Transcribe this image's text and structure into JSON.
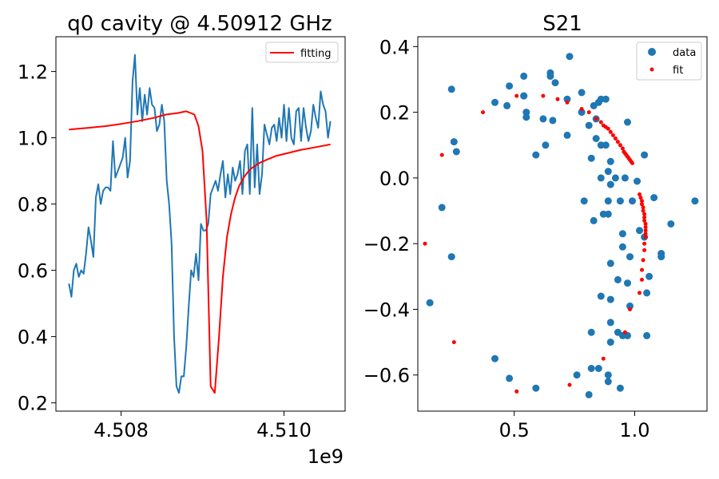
{
  "chart_data": [
    {
      "type": "line",
      "title": "q0 cavity @ 4.50912 GHz",
      "xlabel": "",
      "ylabel": "",
      "x_offset_label": "1e9",
      "xlim": [
        4507.2,
        4510.75
      ],
      "ylim": [
        0.175,
        1.305
      ],
      "x_unit_note": "x values in MHz",
      "xticks": [
        {
          "value": 4508.0,
          "label": "4.508"
        },
        {
          "value": 4510.0,
          "label": "4.510"
        }
      ],
      "yticks": [
        {
          "value": 0.2,
          "label": "0.2"
        },
        {
          "value": 0.4,
          "label": "0.4"
        },
        {
          "value": 0.6,
          "label": "0.6"
        },
        {
          "value": 0.8,
          "label": "0.8"
        },
        {
          "value": 1.0,
          "label": "1.0"
        },
        {
          "value": 1.2,
          "label": "1.2"
        }
      ],
      "legend": {
        "position": "top-right",
        "entries": [
          {
            "name": "fitting",
            "color": "#ff0000",
            "kind": "line"
          }
        ]
      },
      "series": [
        {
          "name": "",
          "color": "#1f77b4",
          "x": [
            4507.36,
            4507.39,
            4507.42,
            4507.45,
            4507.48,
            4507.51,
            4507.54,
            4507.57,
            4507.6,
            4507.63,
            4507.66,
            4507.69,
            4507.72,
            4507.75,
            4507.78,
            4507.81,
            4507.84,
            4507.87,
            4507.9,
            4507.93,
            4507.96,
            4507.99,
            4508.02,
            4508.05,
            4508.08,
            4508.11,
            4508.14,
            4508.17,
            4508.2,
            4508.23,
            4508.26,
            4508.29,
            4508.32,
            4508.35,
            4508.38,
            4508.41,
            4508.44,
            4508.47,
            4508.5,
            4508.53,
            4508.56,
            4508.59,
            4508.62,
            4508.65,
            4508.68,
            4508.71,
            4508.74,
            4508.77,
            4508.8,
            4508.83,
            4508.86,
            4508.89,
            4508.92,
            4508.95,
            4508.98,
            4509.01,
            4509.04,
            4509.07,
            4509.1,
            4509.13,
            4509.16,
            4509.19,
            4509.22,
            4509.25,
            4509.28,
            4509.31,
            4509.34,
            4509.37,
            4509.4,
            4509.43,
            4509.46,
            4509.49,
            4509.52,
            4509.55,
            4509.58,
            4509.61,
            4509.64,
            4509.67,
            4509.7,
            4509.73,
            4509.76,
            4509.79,
            4509.82,
            4509.85,
            4509.88,
            4509.91,
            4509.94,
            4509.97,
            4510.0,
            4510.03,
            4510.06,
            4510.09,
            4510.12,
            4510.15,
            4510.18,
            4510.21,
            4510.24,
            4510.27,
            4510.3,
            4510.33,
            4510.36,
            4510.39,
            4510.42,
            4510.45,
            4510.48,
            4510.51,
            4510.54,
            4510.57
          ],
          "y": [
            0.56,
            0.52,
            0.6,
            0.62,
            0.58,
            0.6,
            0.59,
            0.65,
            0.73,
            0.69,
            0.64,
            0.82,
            0.86,
            0.8,
            0.84,
            0.85,
            0.85,
            0.84,
            0.99,
            0.88,
            0.9,
            0.92,
            0.94,
            1.0,
            0.88,
            0.93,
            1.17,
            1.25,
            1.07,
            1.15,
            1.05,
            1.13,
            1.07,
            1.15,
            1.1,
            1.09,
            1.02,
            1.04,
            1.1,
            1.05,
            0.87,
            0.8,
            0.68,
            0.4,
            0.25,
            0.23,
            0.28,
            0.28,
            0.37,
            0.49,
            0.6,
            0.58,
            0.65,
            0.57,
            0.74,
            0.72,
            0.72,
            0.74,
            0.83,
            0.85,
            0.87,
            0.84,
            0.89,
            0.93,
            0.82,
            0.89,
            0.83,
            0.91,
            0.87,
            0.89,
            0.93,
            0.83,
            0.96,
            0.98,
            0.83,
            1.09,
            0.85,
            0.98,
            0.83,
            0.89,
            1.04,
            1.01,
            0.98,
            1.03,
            1.04,
            0.99,
            1.06,
            1.0,
            1.1,
            0.99,
            1.09,
            1.0,
            0.98,
            1.08,
            1.09,
            0.99,
            1.09,
            1.03,
            0.99,
            1.02,
            1.1,
            1.06,
            1.03,
            1.14,
            1.1,
            1.08,
            1.0,
            1.05
          ]
        },
        {
          "name": "fitting",
          "color": "#ff0000",
          "x": [
            4507.36,
            4507.6,
            4507.8,
            4508.0,
            4508.2,
            4508.4,
            4508.55,
            4508.7,
            4508.8,
            4508.9,
            4508.95,
            4509.0,
            4509.05,
            4509.1,
            4509.15,
            4509.2,
            4509.25,
            4509.3,
            4509.35,
            4509.4,
            4509.45,
            4509.5,
            4509.55,
            4509.6,
            4509.7,
            4509.8,
            4509.9,
            4510.0,
            4510.2,
            4510.4,
            4510.57
          ],
          "y": [
            1.025,
            1.03,
            1.035,
            1.042,
            1.05,
            1.06,
            1.07,
            1.075,
            1.08,
            1.07,
            1.035,
            0.96,
            0.75,
            0.25,
            0.23,
            0.39,
            0.58,
            0.7,
            0.77,
            0.82,
            0.855,
            0.878,
            0.895,
            0.908,
            0.924,
            0.935,
            0.945,
            0.951,
            0.963,
            0.972,
            0.98
          ]
        }
      ]
    },
    {
      "type": "scatter",
      "title": "S21",
      "xlabel": "",
      "ylabel": "",
      "xlim": [
        0.1,
        1.3
      ],
      "ylim": [
        -0.71,
        0.43
      ],
      "xticks": [
        {
          "value": 0.5,
          "label": "0.5"
        },
        {
          "value": 1.0,
          "label": "1.0"
        }
      ],
      "yticks": [
        {
          "value": 0.4,
          "label": "0.4"
        },
        {
          "value": 0.2,
          "label": "0.2"
        },
        {
          "value": 0.0,
          "label": "0.0"
        },
        {
          "value": -0.2,
          "label": "−0.2"
        },
        {
          "value": -0.4,
          "label": "−0.4"
        },
        {
          "value": -0.6,
          "label": "−0.6"
        }
      ],
      "legend": {
        "position": "top-right",
        "entries": [
          {
            "name": "data",
            "color": "#1f77b4",
            "kind": "marker"
          },
          {
            "name": "fit",
            "color": "#ff0000",
            "kind": "marker"
          }
        ]
      },
      "series": [
        {
          "name": "data",
          "color": "#1f77b4",
          "marker_size": "large",
          "points": [
            [
              0.73,
              0.37
            ],
            [
              0.65,
              0.32
            ],
            [
              0.65,
              0.31
            ],
            [
              0.54,
              0.31
            ],
            [
              0.48,
              0.28
            ],
            [
              0.24,
              0.27
            ],
            [
              0.54,
              0.25
            ],
            [
              0.54,
              0.25
            ],
            [
              0.67,
              0.29
            ],
            [
              0.72,
              0.24
            ],
            [
              0.78,
              0.26
            ],
            [
              0.83,
              0.22
            ],
            [
              0.86,
              0.24
            ],
            [
              0.88,
              0.24
            ],
            [
              0.85,
              0.23
            ],
            [
              0.42,
              0.23
            ],
            [
              0.47,
              0.22
            ],
            [
              0.55,
              0.2
            ],
            [
              0.55,
              0.185
            ],
            [
              0.62,
              0.18
            ],
            [
              0.66,
              0.175
            ],
            [
              0.78,
              0.2
            ],
            [
              0.84,
              0.18
            ],
            [
              0.81,
              0.16
            ],
            [
              0.97,
              0.17
            ],
            [
              0.25,
              0.11
            ],
            [
              0.26,
              0.08
            ],
            [
              0.63,
              0.1
            ],
            [
              0.59,
              0.07
            ],
            [
              0.72,
              0.13
            ],
            [
              0.84,
              0.12
            ],
            [
              0.86,
              0.1
            ],
            [
              0.88,
              0.1
            ],
            [
              0.82,
              0.06
            ],
            [
              0.9,
              0.05
            ],
            [
              1.04,
              0.07
            ],
            [
              0.89,
              0.02
            ],
            [
              0.86,
              0.0
            ],
            [
              0.92,
              0.0
            ],
            [
              0.96,
              0.0
            ],
            [
              0.9,
              -0.02
            ],
            [
              1.01,
              -0.01
            ],
            [
              0.79,
              -0.07
            ],
            [
              0.89,
              -0.07
            ],
            [
              0.94,
              -0.07
            ],
            [
              0.99,
              -0.07
            ],
            [
              1.08,
              -0.06
            ],
            [
              0.2,
              -0.09
            ],
            [
              0.83,
              -0.13
            ],
            [
              0.87,
              -0.11
            ],
            [
              0.89,
              -0.11
            ],
            [
              1.02,
              -0.16
            ],
            [
              1.15,
              -0.14
            ],
            [
              0.95,
              -0.17
            ],
            [
              1.04,
              -0.18
            ],
            [
              0.24,
              -0.24
            ],
            [
              0.95,
              -0.21
            ],
            [
              0.98,
              -0.24
            ],
            [
              1.11,
              -0.23
            ],
            [
              1.11,
              -0.24
            ],
            [
              0.9,
              -0.26
            ],
            [
              0.93,
              -0.31
            ],
            [
              0.97,
              -0.32
            ],
            [
              1.06,
              -0.3
            ],
            [
              0.15,
              -0.38
            ],
            [
              0.86,
              -0.36
            ],
            [
              0.9,
              -0.37
            ],
            [
              1.05,
              -0.35
            ],
            [
              0.98,
              -0.39
            ],
            [
              0.9,
              -0.44
            ],
            [
              0.93,
              -0.47
            ],
            [
              0.95,
              -0.48
            ],
            [
              0.97,
              -0.48
            ],
            [
              1.05,
              -0.48
            ],
            [
              0.82,
              -0.47
            ],
            [
              0.9,
              -0.5
            ],
            [
              0.42,
              -0.55
            ],
            [
              0.48,
              -0.61
            ],
            [
              0.82,
              -0.58
            ],
            [
              0.85,
              -0.58
            ],
            [
              0.76,
              -0.6
            ],
            [
              0.89,
              -0.6
            ],
            [
              0.59,
              -0.64
            ],
            [
              0.89,
              -0.62
            ],
            [
              0.94,
              -0.64
            ],
            [
              0.81,
              -0.66
            ],
            [
              1.25,
              -0.07
            ]
          ]
        },
        {
          "name": "fit",
          "color": "#ff0000",
          "marker_size": "small",
          "points": [
            [
              0.51,
              0.25
            ],
            [
              0.62,
              0.25
            ],
            [
              0.68,
              0.24
            ],
            [
              0.72,
              0.23
            ],
            [
              0.37,
              0.2
            ],
            [
              0.78,
              0.21
            ],
            [
              0.81,
              0.2
            ],
            [
              0.84,
              0.18
            ],
            [
              0.86,
              0.17
            ],
            [
              0.87,
              0.16
            ],
            [
              0.88,
              0.155
            ],
            [
              0.89,
              0.15
            ],
            [
              0.9,
              0.14
            ],
            [
              0.91,
              0.13
            ],
            [
              0.92,
              0.12
            ],
            [
              0.93,
              0.11
            ],
            [
              0.94,
              0.1
            ],
            [
              0.95,
              0.09
            ],
            [
              0.955,
              0.08
            ],
            [
              0.96,
              0.075
            ],
            [
              0.965,
              0.07
            ],
            [
              0.97,
              0.065
            ],
            [
              0.975,
              0.06
            ],
            [
              0.98,
              0.055
            ],
            [
              0.985,
              0.05
            ],
            [
              0.99,
              0.045
            ],
            [
              0.2,
              0.07
            ],
            [
              1.02,
              -0.05
            ],
            [
              1.025,
              -0.06
            ],
            [
              1.03,
              -0.07
            ],
            [
              1.03,
              -0.08
            ],
            [
              1.035,
              -0.09
            ],
            [
              1.035,
              -0.1
            ],
            [
              1.04,
              -0.11
            ],
            [
              1.04,
              -0.12
            ],
            [
              1.04,
              -0.13
            ],
            [
              1.045,
              -0.14
            ],
            [
              1.045,
              -0.15
            ],
            [
              1.045,
              -0.16
            ],
            [
              1.045,
              -0.17
            ],
            [
              1.045,
              -0.18
            ],
            [
              1.04,
              -0.2
            ],
            [
              1.04,
              -0.22
            ],
            [
              1.035,
              -0.25
            ],
            [
              1.03,
              -0.28
            ],
            [
              1.03,
              -0.31
            ],
            [
              1.02,
              -0.35
            ],
            [
              0.98,
              -0.4
            ],
            [
              0.96,
              -0.47
            ],
            [
              0.13,
              -0.2
            ],
            [
              0.25,
              -0.5
            ],
            [
              0.87,
              -0.55
            ],
            [
              0.73,
              -0.63
            ],
            [
              0.51,
              -0.65
            ]
          ]
        }
      ]
    }
  ]
}
